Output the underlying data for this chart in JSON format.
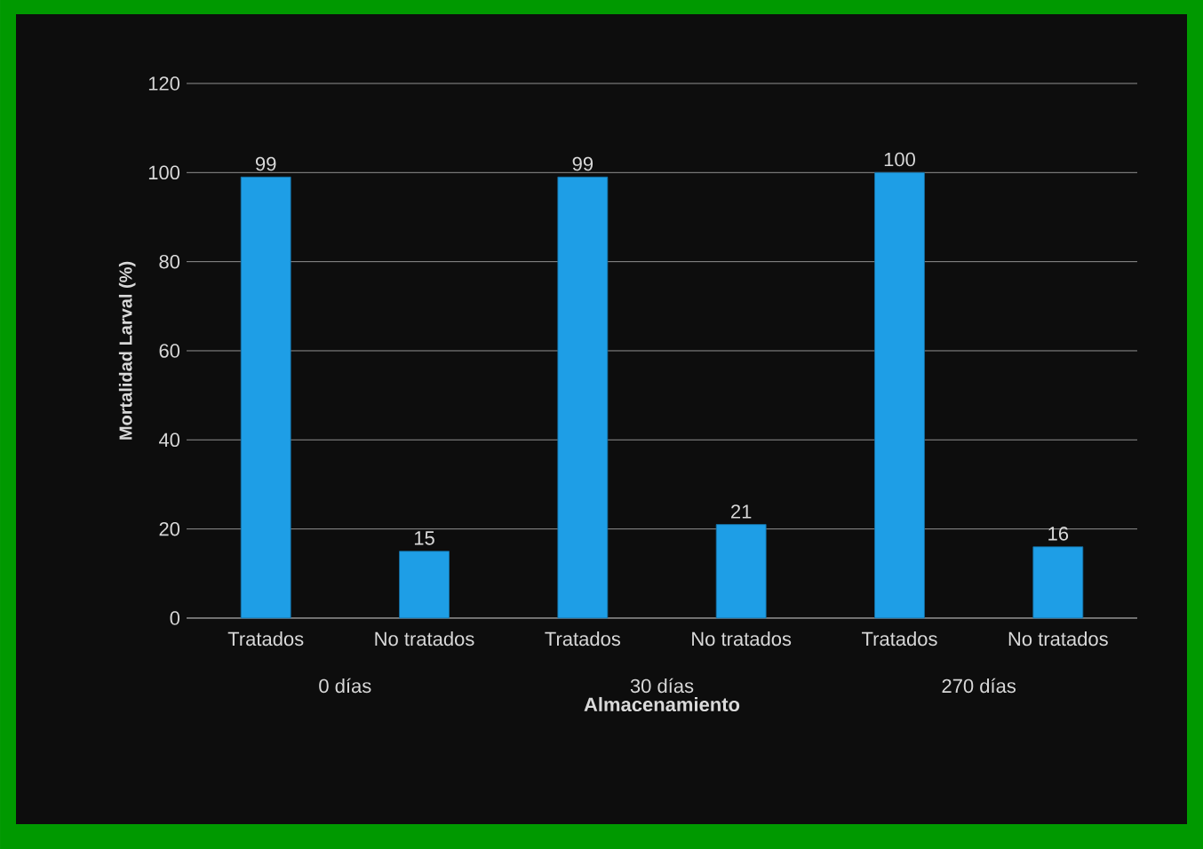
{
  "chart_data": {
    "type": "bar",
    "xlabel": "Almacenamiento",
    "ylabel": "Mortalidad Larval (%)",
    "categories": [
      "Tratados",
      "No tratados",
      "Tratados",
      "No tratados",
      "Tratados",
      "No tratados"
    ],
    "values": [
      99,
      15,
      99,
      21,
      100,
      16
    ],
    "color": "#1e9ee6",
    "ylim": [
      0,
      120
    ],
    "yticks": [
      0,
      20,
      40,
      60,
      80,
      100,
      120
    ],
    "grid": "y",
    "data_labels": true,
    "annotations": [
      "0 días",
      "30 días",
      "270 días"
    ]
  }
}
